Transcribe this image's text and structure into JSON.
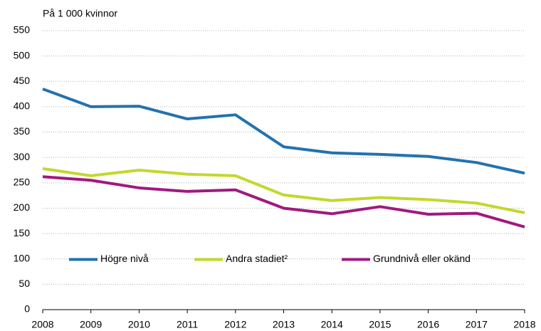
{
  "chart_data": {
    "type": "line",
    "y_axis_label": "På 1 000 kvinnor",
    "x": [
      2008,
      2009,
      2010,
      2011,
      2012,
      2013,
      2014,
      2015,
      2016,
      2017,
      2018
    ],
    "xlim": [
      2008,
      2018
    ],
    "xticks": [
      2008,
      2009,
      2010,
      2011,
      2012,
      2013,
      2014,
      2015,
      2016,
      2017,
      2018
    ],
    "ylim": [
      0,
      550
    ],
    "yticks": [
      0,
      50,
      100,
      150,
      200,
      250,
      300,
      350,
      400,
      450,
      500,
      550
    ],
    "grid": true,
    "legend": "center",
    "series": [
      {
        "name": "Högre nivå",
        "color": "#2272b0",
        "values": [
          435,
          400,
          401,
          376,
          384,
          321,
          309,
          306,
          302,
          290,
          269
        ]
      },
      {
        "name": "Andra stadiet²",
        "color": "#c2d82e",
        "values": [
          278,
          264,
          275,
          267,
          264,
          226,
          215,
          221,
          217,
          210,
          191
        ]
      },
      {
        "name": "Grundnivå eller okänd",
        "color": "#a1197f",
        "values": [
          262,
          255,
          240,
          233,
          236,
          200,
          189,
          203,
          188,
          190,
          163
        ]
      }
    ]
  }
}
